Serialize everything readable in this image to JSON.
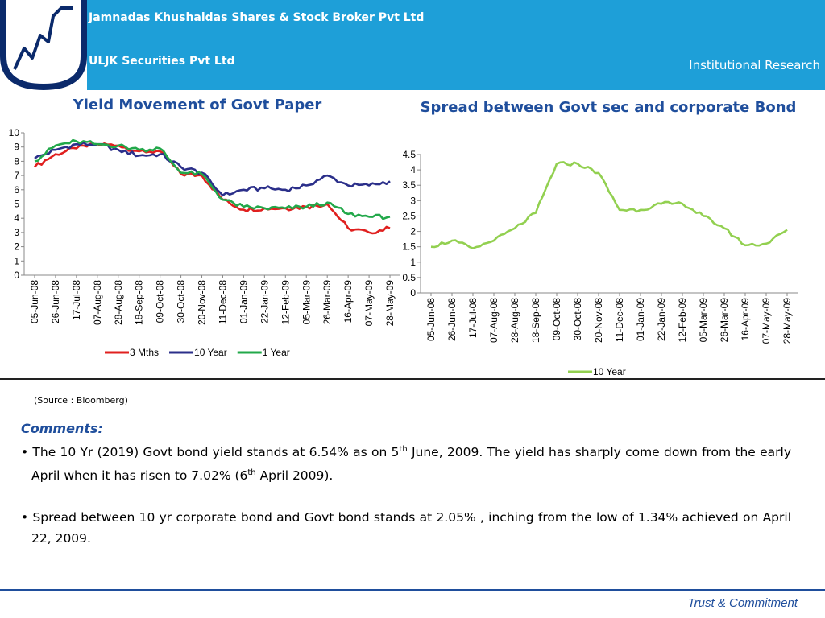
{
  "header": {
    "company_1": "Jamnadas Khushaldas Shares & Stock Broker Pvt Ltd",
    "company_2": "ULJK Securities Pvt Ltd",
    "department": "Institutional Research",
    "bg_color": "#1e9fd8"
  },
  "chart_data": [
    {
      "type": "line",
      "title": "Yield Movement of Govt  Paper",
      "xlabel": "",
      "ylabel": "",
      "ylim": [
        0,
        10
      ],
      "y_ticks": [
        "0",
        "1",
        "2",
        "3",
        "4",
        "5",
        "6",
        "7",
        "8",
        "9",
        "10"
      ],
      "x_ticks": [
        "05-Jun-08",
        "26-Jun-08",
        "17-Jul-08",
        "07-Aug-08",
        "28-Aug-08",
        "18-Sep-08",
        "09-Oct-08",
        "30-Oct-08",
        "20-Nov-08",
        "11-Dec-08",
        "01-Jan-09",
        "22-Jan-09",
        "12-Feb-09",
        "05-Mar-09",
        "26-Mar-09",
        "16-Apr-09",
        "07-May-09",
        "28-May-09"
      ],
      "legend_position": "bottom",
      "grid": false,
      "series": [
        {
          "name": "3 Mths",
          "color": "#e0201f",
          "values": [
            7.6,
            8.5,
            8.9,
            9.2,
            9.1,
            8.7,
            8.7,
            7.1,
            7.0,
            5.3,
            4.6,
            4.7,
            4.7,
            4.8,
            5.0,
            3.3,
            3.0,
            3.3
          ]
        },
        {
          "name": "10 Year",
          "color": "#2b2f8a",
          "values": [
            8.2,
            8.8,
            9.2,
            9.2,
            8.8,
            8.4,
            8.5,
            7.6,
            7.2,
            5.6,
            6.0,
            6.1,
            6.0,
            6.3,
            7.0,
            6.3,
            6.3,
            6.6
          ]
        },
        {
          "name": "1 Year",
          "color": "#22a84a",
          "values": [
            8.0,
            9.1,
            9.4,
            9.2,
            9.1,
            8.8,
            8.9,
            7.2,
            7.1,
            5.3,
            4.8,
            4.7,
            4.7,
            4.8,
            5.1,
            4.3,
            4.1,
            4.1
          ]
        }
      ]
    },
    {
      "type": "line",
      "title": "Spread between Govt sec and  corporate Bond",
      "xlabel": "",
      "ylabel": "",
      "ylim": [
        0,
        4.5
      ],
      "y_ticks": [
        "0",
        "0.5",
        "1",
        "1.5",
        "2",
        "2.5",
        "3",
        "3.5",
        "4",
        "4.5"
      ],
      "x_ticks": [
        "05-Jun-08",
        "26-Jun-08",
        "17-Jul-08",
        "07-Aug-08",
        "28-Aug-08",
        "18-Sep-08",
        "09-Oct-08",
        "30-Oct-08",
        "20-Nov-08",
        "11-Dec-08",
        "01-Jan-09",
        "22-Jan-09",
        "12-Feb-09",
        "05-Mar-09",
        "26-Mar-09",
        "16-Apr-09",
        "07-May-09",
        "28-May-09"
      ],
      "legend_position": "bottom",
      "grid": false,
      "series": [
        {
          "name": "10 Year",
          "color": "#92d050",
          "values": [
            1.5,
            1.7,
            1.45,
            1.7,
            2.1,
            2.6,
            4.2,
            4.2,
            3.9,
            2.7,
            2.7,
            2.9,
            2.9,
            2.5,
            2.1,
            1.55,
            1.6,
            2.05
          ]
        }
      ]
    }
  ],
  "source_note": "(Source : Bloomberg)",
  "comments": {
    "heading": "Comments:",
    "bullet_1": {
      "part_a": "The 10 Yr (2019) Govt bond yield stands at 6.54% as on 5",
      "sup_a": "th",
      "part_b": " June, 2009. The yield has sharply come down from the early April when it has risen to 7.02% (6",
      "sup_b": "th",
      "part_c": " April 2009)."
    },
    "bullet_2": "Spread between 10 yr corporate bond and Govt bond stands at 2.05% , inching from the low of 1.34% achieved on April 22, 2009."
  },
  "footer": "Trust & Commitment"
}
